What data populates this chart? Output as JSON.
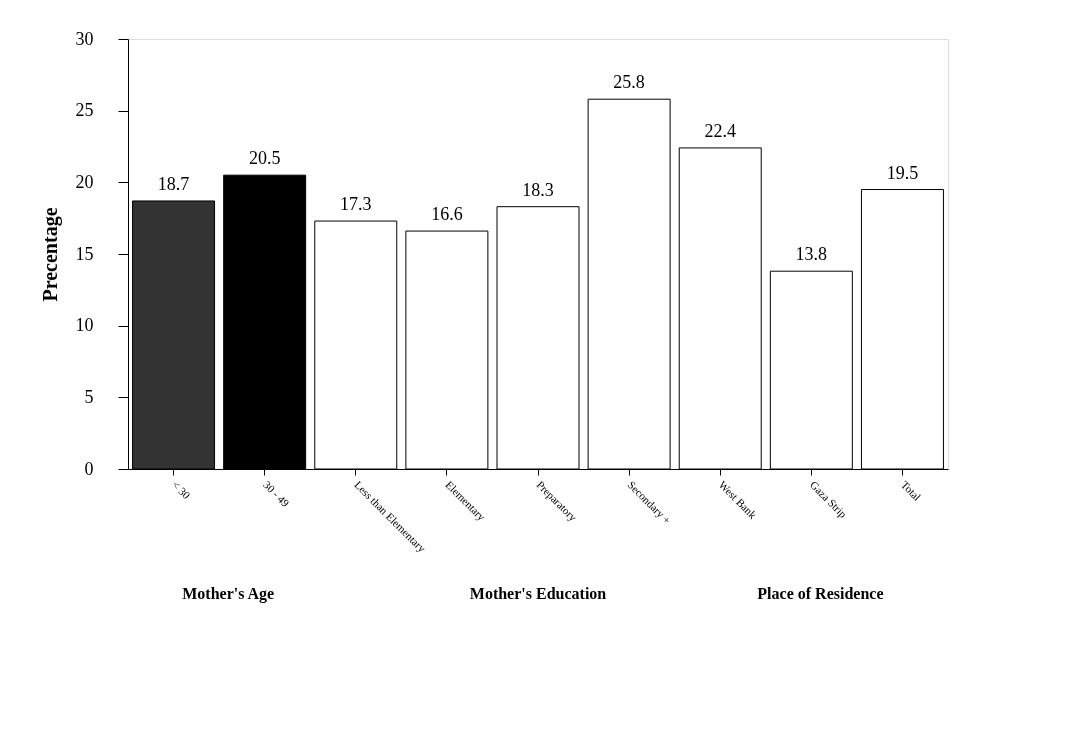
{
  "chart_data": {
    "type": "bar",
    "ylabel": "Precentage",
    "categories": [
      "< 30",
      "30 - 49",
      "Less than Elementary",
      "Elementary",
      "Preparatory",
      "Secondary +",
      "West Bank",
      "Gaza Strip",
      "Total"
    ],
    "values": [
      18.7,
      20.5,
      17.3,
      16.6,
      18.3,
      25.8,
      22.4,
      13.8,
      19.5
    ],
    "colors": [
      "#333333",
      "#000000",
      "#ffffff",
      "#ffffff",
      "#ffffff",
      "#ffffff",
      "#ffffff",
      "#ffffff",
      "#ffffff"
    ],
    "ylim": [
      0,
      30
    ],
    "yticks": [
      0,
      5,
      10,
      15,
      20,
      25,
      30
    ],
    "grid": false,
    "data_labels": true,
    "annotations": [
      "Mother's Age",
      "Mother's Education",
      "Place of Residence"
    ]
  }
}
